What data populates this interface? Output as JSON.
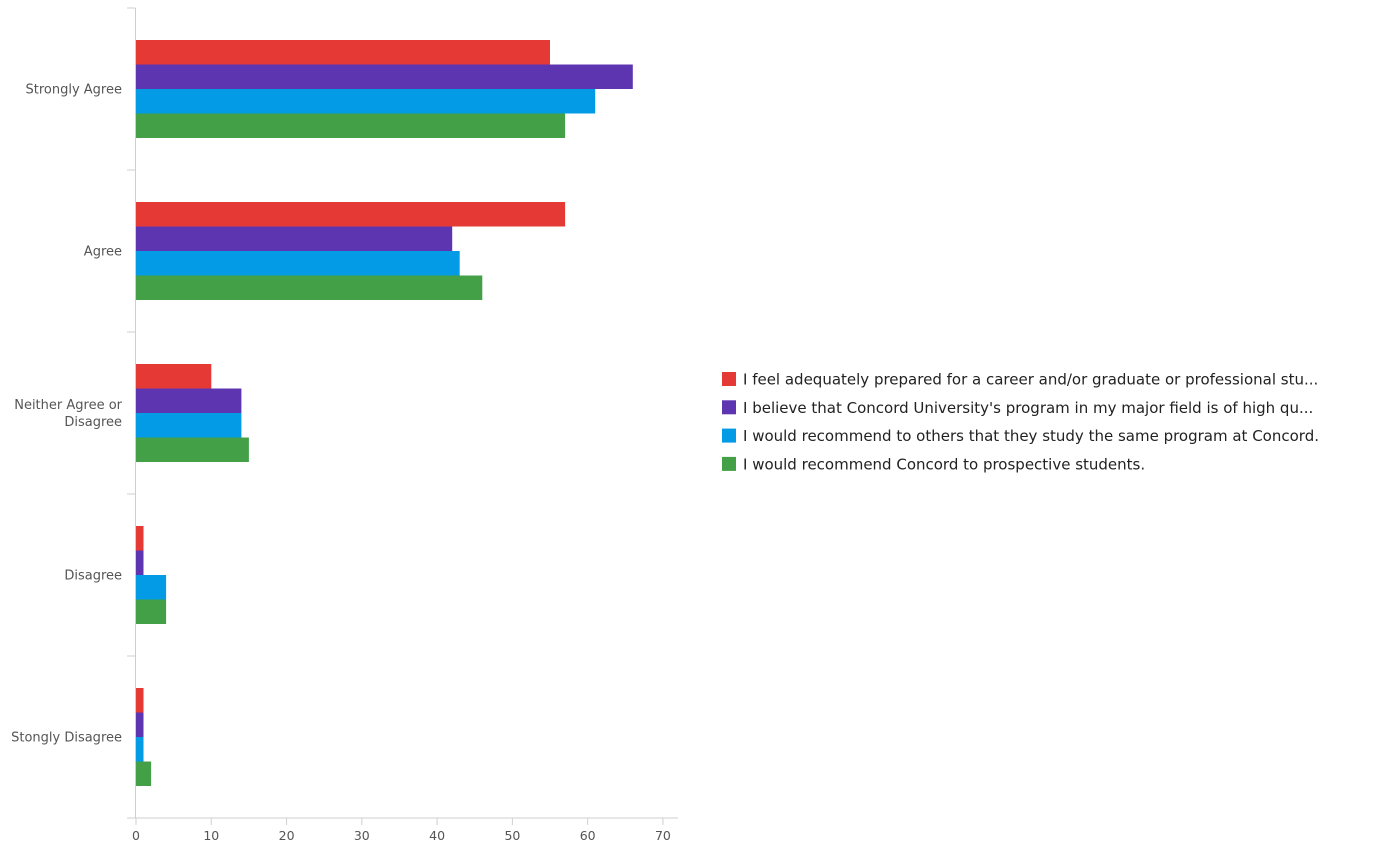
{
  "chart_data": {
    "type": "bar",
    "orientation": "horizontal",
    "categories": [
      [
        "Strongly Agree"
      ],
      [
        "Agree"
      ],
      [
        "Neither Agree or",
        "Disagree"
      ],
      [
        "Disagree"
      ],
      [
        "Stongly Disagree"
      ]
    ],
    "series": [
      {
        "name": "I feel adequately prepared for a career and/or graduate or professional stu...",
        "color": "#e53935",
        "values": [
          55,
          57,
          10,
          1,
          1
        ]
      },
      {
        "name": "I believe that Concord University's program in my major field is of high qu...",
        "color": "#5e35b1",
        "values": [
          66,
          42,
          14,
          1,
          1
        ]
      },
      {
        "name": "I would recommend to others that they study the same program at Concord.",
        "color": "#039be5",
        "values": [
          61,
          43,
          14,
          4,
          1
        ]
      },
      {
        "name": "I would recommend Concord to prospective students.",
        "color": "#43a047",
        "values": [
          57,
          46,
          15,
          4,
          2
        ]
      }
    ],
    "xlim": [
      0,
      72
    ],
    "xticks": [
      0,
      10,
      20,
      30,
      40,
      50,
      60,
      70
    ],
    "grid": false,
    "legend_position": "right"
  }
}
